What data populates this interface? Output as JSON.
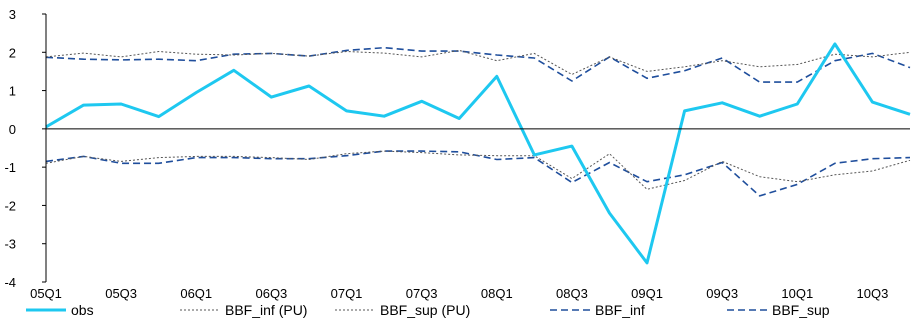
{
  "chart_data": {
    "type": "line",
    "title": "",
    "xlabel": "",
    "ylabel": "",
    "ylim": [
      -4,
      3
    ],
    "yticks": [
      3,
      2,
      1,
      0,
      -1,
      -2,
      -3,
      -4
    ],
    "x": [
      "05Q1",
      "05Q2",
      "05Q3",
      "05Q4",
      "06Q1",
      "06Q2",
      "06Q3",
      "06Q4",
      "07Q1",
      "07Q2",
      "07Q3",
      "07Q4",
      "08Q1",
      "08Q2",
      "08Q3",
      "08Q4",
      "09Q1",
      "09Q2",
      "09Q3",
      "09Q4",
      "10Q1",
      "10Q2",
      "10Q3",
      "10Q4"
    ],
    "xtick_labels": [
      "05Q1",
      "05Q3",
      "06Q1",
      "06Q3",
      "07Q1",
      "07Q3",
      "08Q1",
      "08Q3",
      "09Q1",
      "09Q3",
      "10Q1",
      "10Q3"
    ],
    "grid": false,
    "legend": "bottom",
    "series": [
      {
        "name": "obs",
        "color": "#1ec8f0",
        "style": "solid-thick",
        "values": [
          0.05,
          0.62,
          0.65,
          0.32,
          0.95,
          1.53,
          0.83,
          1.12,
          0.47,
          0.33,
          0.72,
          0.27,
          1.37,
          -0.68,
          -0.45,
          -2.2,
          -3.5,
          0.47,
          0.68,
          0.33,
          0.65,
          2.22,
          0.7,
          0.38
        ]
      },
      {
        "name": "BBF_inf (PU)",
        "color": "#555555",
        "style": "dotted",
        "values": [
          -0.9,
          -0.72,
          -0.85,
          -0.75,
          -0.72,
          -0.72,
          -0.75,
          -0.8,
          -0.65,
          -0.58,
          -0.62,
          -0.68,
          -0.7,
          -0.7,
          -1.3,
          -0.65,
          -1.58,
          -1.35,
          -0.85,
          -1.25,
          -1.38,
          -1.2,
          -1.1,
          -0.82
        ]
      },
      {
        "name": "BBF_sup (PU)",
        "color": "#555555",
        "style": "dotted",
        "values": [
          1.88,
          1.98,
          1.88,
          2.02,
          1.95,
          1.93,
          1.97,
          1.9,
          2.02,
          1.98,
          1.88,
          2.05,
          1.78,
          1.97,
          1.42,
          1.88,
          1.5,
          1.62,
          1.78,
          1.62,
          1.68,
          1.95,
          1.88,
          2.0
        ]
      },
      {
        "name": "BBF_inf",
        "color": "#1f4e9c",
        "style": "dashed",
        "values": [
          -0.85,
          -0.72,
          -0.9,
          -0.9,
          -0.75,
          -0.75,
          -0.78,
          -0.78,
          -0.7,
          -0.58,
          -0.58,
          -0.6,
          -0.8,
          -0.75,
          -1.4,
          -0.88,
          -1.38,
          -1.2,
          -0.88,
          -1.75,
          -1.45,
          -0.9,
          -0.78,
          -0.75
        ]
      },
      {
        "name": "BBF_sup",
        "color": "#1f4e9c",
        "style": "dashed",
        "values": [
          1.87,
          1.82,
          1.8,
          1.82,
          1.78,
          1.95,
          1.97,
          1.9,
          2.05,
          2.12,
          2.03,
          2.03,
          1.93,
          1.85,
          1.25,
          1.88,
          1.32,
          1.52,
          1.85,
          1.22,
          1.22,
          1.78,
          1.97,
          1.6
        ]
      }
    ]
  }
}
